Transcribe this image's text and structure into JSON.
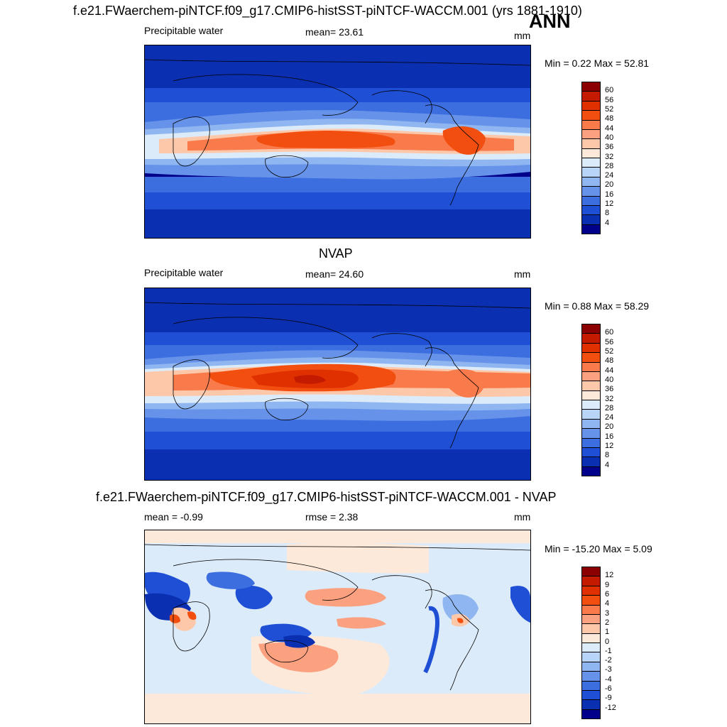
{
  "main_title": "f.e21.FWaerchem-piNTCF.f09_g17.CMIP6-histSST-piNTCF-WACCM.001 (yrs 1881-1910)",
  "season": "ANN",
  "panels": [
    {
      "variable": "Precipitable water",
      "stat": "mean=  23.61",
      "units": "mm",
      "minmax": "Min =   0.22 Max =  52.81",
      "levels": [
        "60",
        "56",
        "52",
        "48",
        "44",
        "40",
        "36",
        "32",
        "28",
        "24",
        "20",
        "16",
        "12",
        "8",
        "4"
      ],
      "colors": [
        "#8b0000",
        "#c41a00",
        "#e03000",
        "#f24e10",
        "#f97a4a",
        "#fca180",
        "#fdc8aa",
        "#fde9da",
        "#dcebfa",
        "#b8d4f7",
        "#8fb6f0",
        "#6692e9",
        "#3d6ee0",
        "#1e4fd4",
        "#0a2fb0",
        "#00008b"
      ]
    },
    {
      "title": "NVAP",
      "variable": "Precipitable water",
      "stat": "mean=  24.60",
      "units": "mm",
      "minmax": "Min =   0.88 Max =  58.29",
      "levels": [
        "60",
        "56",
        "52",
        "48",
        "44",
        "40",
        "36",
        "32",
        "28",
        "24",
        "20",
        "16",
        "12",
        "8",
        "4"
      ],
      "colors": [
        "#8b0000",
        "#c41a00",
        "#e03000",
        "#f24e10",
        "#f97a4a",
        "#fca180",
        "#fdc8aa",
        "#fde9da",
        "#dcebfa",
        "#b8d4f7",
        "#8fb6f0",
        "#6692e9",
        "#3d6ee0",
        "#1e4fd4",
        "#0a2fb0",
        "#00008b"
      ]
    },
    {
      "title": "f.e21.FWaerchem-piNTCF.f09_g17.CMIP6-histSST-piNTCF-WACCM.001 - NVAP",
      "stat_left": "mean =  -0.99",
      "stat": "rmse =   2.38",
      "units": "mm",
      "minmax": "Min = -15.20 Max =   5.09",
      "levels": [
        "12",
        "9",
        "6",
        "4",
        "3",
        "2",
        "1",
        "0",
        "-1",
        "-2",
        "-3",
        "-4",
        "-6",
        "-9",
        "-12"
      ],
      "colors": [
        "#8b0000",
        "#c41a00",
        "#e03000",
        "#f24e10",
        "#f97a4a",
        "#fca180",
        "#fdc8aa",
        "#fde9da",
        "#dcebfa",
        "#b8d4f7",
        "#8fb6f0",
        "#6692e9",
        "#3d6ee0",
        "#1e4fd4",
        "#0a2fb0",
        "#00008b"
      ]
    }
  ]
}
